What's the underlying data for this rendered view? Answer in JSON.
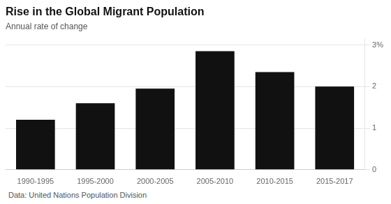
{
  "chart_data": {
    "type": "bar",
    "title": "Rise in the Global Migrant Population",
    "subtitle": "Annual rate of change",
    "footnote": "Data: United Nations Population Division",
    "categories": [
      "1990-1995",
      "1995-2000",
      "2000-2005",
      "2005-2010",
      "2010-2015",
      "2015-2017"
    ],
    "values": [
      1.2,
      1.6,
      1.95,
      2.85,
      2.35,
      2.0
    ],
    "color": "#111111",
    "ylim": [
      0,
      3.15
    ],
    "yticks": [
      0,
      1,
      2,
      {
        "value": 3,
        "label": "3%"
      }
    ],
    "grid": true
  }
}
